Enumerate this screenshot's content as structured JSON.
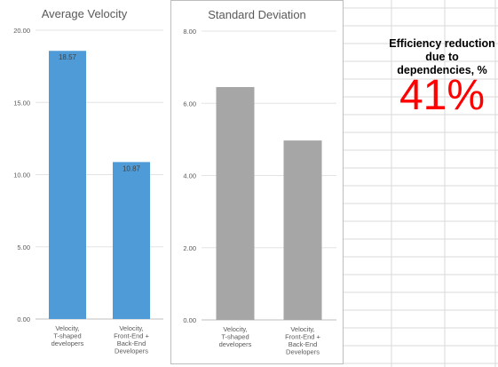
{
  "callout": {
    "label": "Efficiency reduction due to dependencies, %",
    "value": "41%"
  },
  "colors": {
    "velocity_bar": "#4e9bd8",
    "stddev_bar": "#a6a6a6",
    "callout_value": "#ff0000"
  },
  "chart_data": [
    {
      "type": "bar",
      "title": "Average Velocity",
      "xlabel": "",
      "ylabel": "",
      "categories": [
        [
          "Velocity,",
          "T-shaped",
          "developers"
        ],
        [
          "Velocity,",
          "Front-End +",
          "Back-End",
          "Developers"
        ]
      ],
      "values": [
        18.57,
        10.87
      ],
      "data_labels": [
        "18.57",
        "10.87"
      ],
      "ylim": [
        0,
        20
      ],
      "yticks": [
        "0.00",
        "5.00",
        "10.00",
        "15.00",
        "20.00"
      ],
      "grid": true,
      "legend": "none"
    },
    {
      "type": "bar",
      "title": "Standard Deviation",
      "xlabel": "",
      "ylabel": "",
      "categories": [
        [
          "Velocity,",
          "T-shaped",
          "developers"
        ],
        [
          "Velocity,",
          "Front-End +",
          "Back-End",
          "Developers"
        ]
      ],
      "values": [
        6.45,
        4.97
      ],
      "ylim": [
        0,
        8
      ],
      "yticks": [
        "0.00",
        "2.00",
        "4.00",
        "6.00",
        "8.00"
      ],
      "grid": true,
      "legend": "none"
    }
  ]
}
